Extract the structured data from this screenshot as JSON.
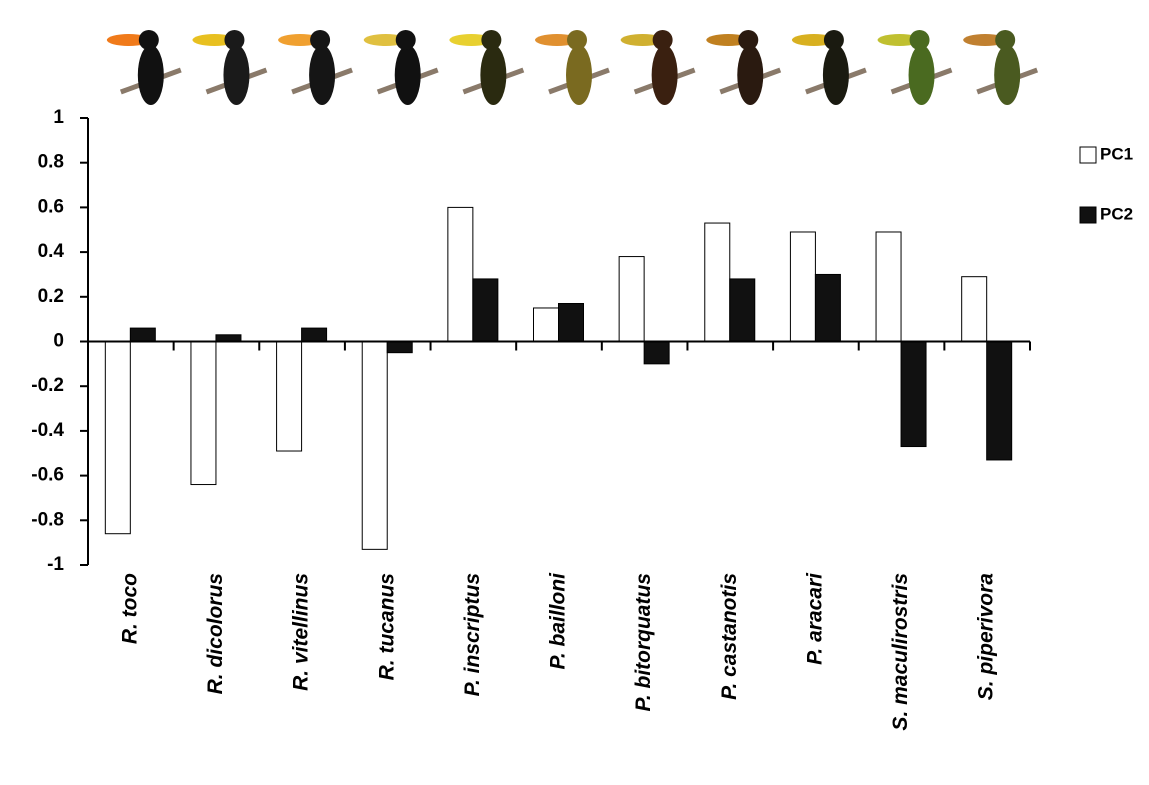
{
  "chart_data": {
    "type": "bar",
    "categories": [
      "R. toco",
      "R. dicolorus",
      "R. vitellinus",
      "R. tucanus",
      "P. inscriptus",
      "P. bailloni",
      "P. bitorquatus",
      "P. castanotis",
      "P. aracari",
      "S. maculirostris",
      "S. piperivora"
    ],
    "series": [
      {
        "name": "PC1",
        "color": "#ffffff",
        "values": [
          -0.86,
          -0.64,
          -0.49,
          -0.93,
          0.6,
          0.15,
          0.38,
          0.53,
          0.49,
          0.49,
          0.29
        ]
      },
      {
        "name": "PC2",
        "color": "#111111",
        "values": [
          0.06,
          0.03,
          0.06,
          -0.05,
          0.28,
          0.17,
          -0.1,
          0.28,
          0.3,
          -0.47,
          -0.53
        ]
      }
    ],
    "ylim": [
      -1,
      1
    ],
    "yticks": [
      1,
      0.8,
      0.6,
      0.4,
      0.2,
      0,
      -0.2,
      -0.4,
      -0.6,
      -0.8,
      -1
    ],
    "legend": "right"
  }
}
